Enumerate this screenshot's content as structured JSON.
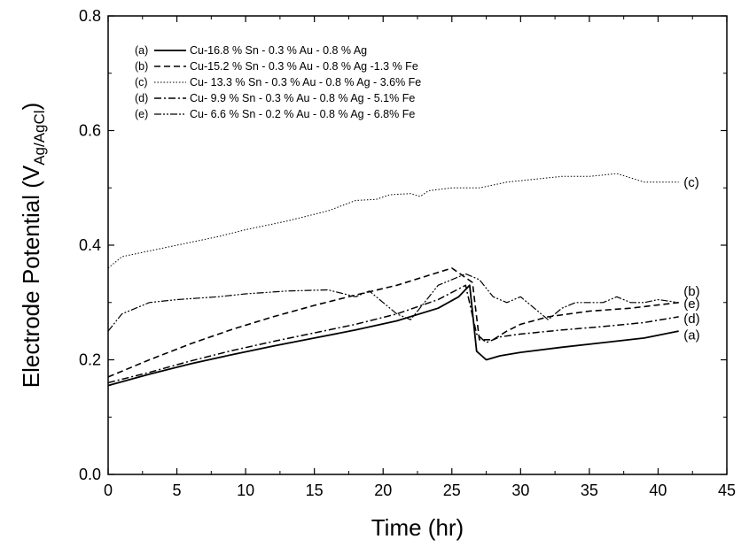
{
  "chart_data": {
    "type": "line",
    "xlabel": "Time (hr)",
    "ylabel": {
      "main": "Electrode Potential (V",
      "subscript": "Ag/AgCl",
      "close": ")"
    },
    "xlim": [
      0,
      45
    ],
    "ylim": [
      0.0,
      0.8
    ],
    "x_ticks": [
      "0",
      "5",
      "10",
      "15",
      "20",
      "25",
      "30",
      "35",
      "40",
      "45"
    ],
    "y_ticks": [
      "0.0",
      "0.2",
      "0.4",
      "0.6",
      "0.8"
    ],
    "legend_position": "top-left",
    "grid": false,
    "series": [
      {
        "name": "(a) Cu-16.8 % Sn - 0.3 % Au - 0.8 % Ag",
        "tag": "(a)",
        "legend_text": "Cu-16.8 % Sn - 0.3 % Au - 0.8 % Ag",
        "style": "solid",
        "points": [
          [
            0,
            0.155
          ],
          [
            3,
            0.175
          ],
          [
            6,
            0.193
          ],
          [
            9,
            0.209
          ],
          [
            12,
            0.224
          ],
          [
            15,
            0.238
          ],
          [
            18,
            0.252
          ],
          [
            21,
            0.268
          ],
          [
            24,
            0.29
          ],
          [
            25.5,
            0.31
          ],
          [
            26.3,
            0.33
          ],
          [
            26.8,
            0.215
          ],
          [
            27.5,
            0.2
          ],
          [
            28.5,
            0.207
          ],
          [
            30,
            0.213
          ],
          [
            33,
            0.222
          ],
          [
            36,
            0.23
          ],
          [
            39,
            0.238
          ],
          [
            41.5,
            0.25
          ]
        ]
      },
      {
        "name": "(b) Cu-15.2 % Sn - 0.3 % Au - 0.8 % Ag -1.3 % Fe",
        "tag": "(b)",
        "legend_text": "Cu-15.2 % Sn - 0.3 % Au - 0.8 % Ag -1.3 % Fe",
        "style": "dashed",
        "points": [
          [
            0,
            0.17
          ],
          [
            3,
            0.2
          ],
          [
            6,
            0.228
          ],
          [
            9,
            0.253
          ],
          [
            12,
            0.275
          ],
          [
            15,
            0.295
          ],
          [
            18,
            0.313
          ],
          [
            21,
            0.33
          ],
          [
            23,
            0.345
          ],
          [
            25,
            0.36
          ],
          [
            26.5,
            0.335
          ],
          [
            27,
            0.235
          ],
          [
            28,
            0.235
          ],
          [
            29,
            0.25
          ],
          [
            30,
            0.262
          ],
          [
            32,
            0.275
          ],
          [
            35,
            0.285
          ],
          [
            38,
            0.29
          ],
          [
            41.5,
            0.3
          ]
        ]
      },
      {
        "name": "(c) Cu- 13.3 % Sn - 0.3 % Au - 0.8 % Ag - 3.6% Fe",
        "tag": "(c)",
        "legend_text": "Cu- 13.3 % Sn - 0.3 % Au - 0.8 % Ag - 3.6% Fe",
        "style": "dotted",
        "points": [
          [
            0,
            0.36
          ],
          [
            1,
            0.38
          ],
          [
            3,
            0.39
          ],
          [
            5,
            0.4
          ],
          [
            8,
            0.415
          ],
          [
            10,
            0.427
          ],
          [
            13,
            0.442
          ],
          [
            16,
            0.46
          ],
          [
            18,
            0.478
          ],
          [
            19.5,
            0.48
          ],
          [
            20.5,
            0.488
          ],
          [
            22,
            0.49
          ],
          [
            22.7,
            0.485
          ],
          [
            23.3,
            0.495
          ],
          [
            25,
            0.5
          ],
          [
            27,
            0.5
          ],
          [
            29,
            0.51
          ],
          [
            31,
            0.515
          ],
          [
            33,
            0.52
          ],
          [
            35,
            0.52
          ],
          [
            37,
            0.525
          ],
          [
            39,
            0.51
          ],
          [
            41.5,
            0.51
          ]
        ]
      },
      {
        "name": "(d) Cu- 9.9 % Sn - 0.3 % Au - 0.8 % Ag - 5.1% Fe",
        "tag": "(d)",
        "legend_text": "Cu- 9.9 % Sn - 0.3 % Au - 0.8 % Ag - 5.1% Fe",
        "style": "dashdot",
        "points": [
          [
            0,
            0.16
          ],
          [
            3,
            0.178
          ],
          [
            6,
            0.198
          ],
          [
            9,
            0.216
          ],
          [
            12,
            0.232
          ],
          [
            15,
            0.247
          ],
          [
            18,
            0.262
          ],
          [
            21,
            0.28
          ],
          [
            24,
            0.305
          ],
          [
            26,
            0.33
          ],
          [
            26.8,
            0.245
          ],
          [
            27.5,
            0.23
          ],
          [
            28.5,
            0.24
          ],
          [
            30,
            0.245
          ],
          [
            33,
            0.252
          ],
          [
            36,
            0.258
          ],
          [
            39,
            0.265
          ],
          [
            41.5,
            0.275
          ]
        ]
      },
      {
        "name": "(e) Cu- 6.6 % Sn - 0.2 % Au - 0.8 % Ag - 6.8% Fe",
        "tag": "(e)",
        "legend_text": "Cu- 6.6 % Sn - 0.2 % Au - 0.8 % Ag - 6.8% Fe",
        "style": "dashdotdot",
        "points": [
          [
            0,
            0.25
          ],
          [
            1,
            0.28
          ],
          [
            3,
            0.3
          ],
          [
            5,
            0.305
          ],
          [
            8,
            0.31
          ],
          [
            10,
            0.315
          ],
          [
            13,
            0.32
          ],
          [
            16,
            0.322
          ],
          [
            18,
            0.31
          ],
          [
            19,
            0.32
          ],
          [
            20,
            0.3
          ],
          [
            21,
            0.28
          ],
          [
            22,
            0.27
          ],
          [
            23,
            0.3
          ],
          [
            24,
            0.33
          ],
          [
            25,
            0.34
          ],
          [
            26,
            0.35
          ],
          [
            27,
            0.34
          ],
          [
            28,
            0.31
          ],
          [
            29,
            0.3
          ],
          [
            30,
            0.31
          ],
          [
            31,
            0.29
          ],
          [
            32,
            0.27
          ],
          [
            33,
            0.29
          ],
          [
            34,
            0.3
          ],
          [
            35,
            0.3
          ],
          [
            36,
            0.3
          ],
          [
            37,
            0.31
          ],
          [
            38,
            0.3
          ],
          [
            39,
            0.3
          ],
          [
            40,
            0.305
          ],
          [
            41.5,
            0.3
          ]
        ]
      }
    ],
    "end_labels": [
      {
        "text": "(c)",
        "x": 41.6,
        "y": 0.51
      },
      {
        "text": "(b)",
        "x": 41.6,
        "y": 0.32
      },
      {
        "text": "(e)",
        "x": 41.6,
        "y": 0.298
      },
      {
        "text": "(d)",
        "x": 41.6,
        "y": 0.272
      },
      {
        "text": "(a)",
        "x": 41.6,
        "y": 0.243
      }
    ]
  }
}
